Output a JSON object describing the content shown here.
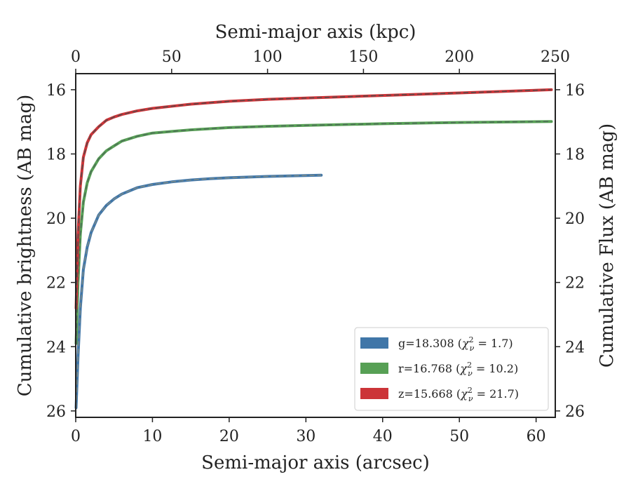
{
  "chart_data": {
    "type": "line",
    "xlabel": "Semi-major axis (arcsec)",
    "x2label": "Semi-major axis (kpc)",
    "ylabel": "Cumulative brightness (AB mag)",
    "y2label": "Cumulative Flux (AB mag)",
    "xlim": [
      0,
      62.5
    ],
    "x2lim": [
      0,
      250
    ],
    "ylim": [
      26.2,
      15.5
    ],
    "y_inverted": true,
    "xticks": [
      "0",
      "10",
      "20",
      "30",
      "40",
      "50",
      "60"
    ],
    "x2ticks": [
      "0",
      "50",
      "100",
      "150",
      "200",
      "250"
    ],
    "yticks": [
      "16",
      "18",
      "20",
      "22",
      "24",
      "26"
    ],
    "grid": false,
    "legend_position": "lower-right",
    "series": [
      {
        "name": "g=18.308 (χ²ν = 1.7)",
        "legend_main": "g=18.308 (",
        "legend_chi": "χ",
        "legend_sup": "2",
        "legend_sub": "ν",
        "legend_eq": " = 1.7)",
        "color": "#4076a8",
        "fit_color": "#7a8a8a",
        "x": [
          0.05,
          0.3,
          0.6,
          1,
          1.5,
          2,
          3,
          4,
          5,
          6,
          8,
          10,
          12.5,
          15,
          17.5,
          20,
          25,
          30,
          32
        ],
        "y": [
          25.9,
          24.3,
          22.8,
          21.6,
          20.9,
          20.45,
          19.9,
          19.6,
          19.4,
          19.25,
          19.05,
          18.95,
          18.87,
          18.81,
          18.77,
          18.74,
          18.7,
          18.67,
          18.66
        ]
      },
      {
        "name": "r=16.768 (χ²ν = 10.2)",
        "legend_main": "r=16.768 (",
        "legend_chi": "χ",
        "legend_sup": "2",
        "legend_sub": "ν",
        "legend_eq": " = 10.2)",
        "color": "#57a055",
        "fit_color": "#4e6e58",
        "x": [
          0.05,
          0.3,
          0.6,
          1,
          1.5,
          2,
          3,
          4,
          5,
          6,
          8,
          10,
          15,
          20,
          25,
          30,
          40,
          50,
          62
        ],
        "y": [
          23.9,
          22.0,
          20.5,
          19.5,
          18.9,
          18.55,
          18.15,
          17.9,
          17.75,
          17.6,
          17.45,
          17.35,
          17.25,
          17.18,
          17.14,
          17.11,
          17.06,
          17.02,
          16.99
        ]
      },
      {
        "name": "z=15.668 (χ²ν = 21.7)",
        "legend_main": "z=15.668 (",
        "legend_chi": "χ",
        "legend_sup": "2",
        "legend_sub": "ν",
        "legend_eq": " = 21.7)",
        "color": "#cc3438",
        "fit_color": "#5a4a4a",
        "x": [
          0.05,
          0.3,
          0.6,
          1,
          1.5,
          2,
          3,
          4,
          5,
          6,
          8,
          10,
          15,
          20,
          25,
          30,
          40,
          50,
          62
        ],
        "y": [
          22.8,
          20.5,
          19.0,
          18.1,
          17.65,
          17.4,
          17.15,
          16.95,
          16.85,
          16.77,
          16.66,
          16.58,
          16.45,
          16.36,
          16.3,
          16.26,
          16.18,
          16.1,
          16.0
        ]
      }
    ]
  }
}
